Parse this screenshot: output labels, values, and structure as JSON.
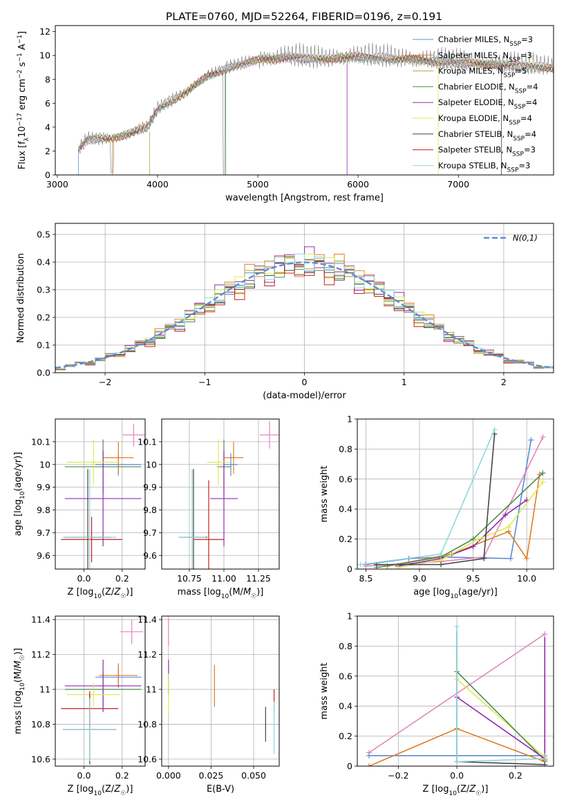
{
  "title": "PLATE=0760, MJD=52264, FIBERID=0196, z=0.191",
  "colors": {
    "series": [
      "#5b8bd9",
      "#e07b1f",
      "#b8a23a",
      "#4f8a4f",
      "#8f2bb0",
      "#d8ec52",
      "#444444",
      "#c41e1e",
      "#8fd6da"
    ],
    "pink": "#e584b8",
    "observed": "#7a7a7a",
    "normal_curve": "#5b8bd9",
    "grid": "#b0b0b0"
  },
  "chart_data": [
    {
      "id": "spectrum",
      "type": "line",
      "xlabel": "wavelength [Angstrom, rest frame]",
      "ylabel": "Flux [f_λ10^-17 erg cm^-2 s^-1 A^-1]",
      "xlim": [
        2980,
        7950
      ],
      "ylim": [
        0,
        12.5
      ],
      "xticks": [
        3000,
        4000,
        5000,
        6000,
        7000
      ],
      "yticks": [
        0,
        2,
        4,
        6,
        8,
        10,
        12
      ],
      "grid": false,
      "legend": "right",
      "series_names": [
        "Chabrier MILES, N_SSP=3",
        "Salpeter MILES, N_SSP=3",
        "Kroupa MILES, N_SSP=5",
        "Chabrier ELODIE, N_SSP=4",
        "Salpeter ELODIE, N_SSP=4",
        "Kroupa ELODIE, N_SSP=4",
        "Chabrier STELIB, N_SSP=4",
        "Salpeter STELIB, N_SSP=3",
        "Kroupa STELIB, N_SSP=3"
      ],
      "x_range": [
        3210,
        7950
      ],
      "continuum_x": [
        3210,
        3300,
        3500,
        3700,
        3900,
        4000,
        4300,
        4500,
        4800,
        5000,
        5300,
        5600,
        6000,
        6500,
        7000,
        7500,
        7950
      ],
      "continuum_y": [
        2.1,
        3.0,
        3.0,
        3.4,
        4.0,
        5.5,
        7.0,
        8.3,
        9.2,
        9.6,
        9.9,
        9.7,
        9.9,
        9.7,
        9.4,
        9.2,
        9.0
      ]
    },
    {
      "id": "residuals",
      "type": "bar",
      "xlabel": "(data-model)/error",
      "ylabel": "Normed distribution",
      "xlim": [
        -2.5,
        2.5
      ],
      "ylim": [
        0,
        0.54
      ],
      "xticks": [
        -2,
        -1,
        0,
        1,
        2
      ],
      "yticks": [
        0.0,
        0.1,
        0.2,
        0.3,
        0.4,
        0.5
      ],
      "grid": true,
      "legend": "top-right",
      "curve_name": "N(0,1)",
      "bin_width": 0.1,
      "bin_start": -2.5,
      "histogram_peak": [
        0.39,
        0.39,
        0.4,
        0.38,
        0.39,
        0.4,
        0.38,
        0.37,
        0.4
      ],
      "offsets": [
        [
          0.0,
          0.05,
          -0.02,
          0.03,
          -0.03,
          0.04,
          0.0,
          -0.04,
          0.02
        ],
        [
          0.06,
          -0.05,
          0.11,
          -0.02,
          0.04,
          -0.03,
          0.05,
          -0.06,
          0.03
        ],
        [
          -0.04,
          0.02,
          -0.06,
          0.05,
          -0.01,
          0.06,
          -0.05,
          0.03,
          -0.02
        ]
      ]
    },
    {
      "id": "age-vs-z",
      "type": "scatter",
      "xlabel": "Z [log10(Z/Z☉)]",
      "ylabel": "age [log10(age/yr)]",
      "xlim": [
        -0.15,
        0.32
      ],
      "ylim": [
        9.54,
        10.2
      ],
      "xticks": [
        0.0,
        0.2
      ],
      "xtick_labels": [
        "0.0",
        "0.2"
      ],
      "yticks": [
        9.6,
        9.7,
        9.8,
        9.9,
        10.0,
        10.1
      ],
      "grid": true,
      "points": [
        {
          "x": 0.18,
          "y": 10.0,
          "xerr": 0.12,
          "yerr": 0.05,
          "c": 0
        },
        {
          "x": 0.18,
          "y": 10.03,
          "xerr": 0.08,
          "yerr": 0.07,
          "c": 1
        },
        {
          "x": 0.1,
          "y": 9.99,
          "xerr": 0.2,
          "yerr": 0.12,
          "c": 3
        },
        {
          "x": 0.1,
          "y": 9.85,
          "xerr": 0.2,
          "yerr": 0.21,
          "c": 4
        },
        {
          "x": 0.05,
          "y": 10.01,
          "xerr": 0.14,
          "yerr": 0.1,
          "c": 5
        },
        {
          "x": 0.02,
          "y": 9.68,
          "xerr": 0.12,
          "yerr": 0.3,
          "c": 6
        },
        {
          "x": 0.04,
          "y": 9.67,
          "xerr": 0.16,
          "yerr": 0.1,
          "c": 7
        },
        {
          "x": 0.03,
          "y": 9.68,
          "xerr": 0.14,
          "yerr": 0.3,
          "c": 8
        },
        {
          "x": 0.26,
          "y": 10.13,
          "xerr": 0.06,
          "yerr": 0.05,
          "c": 9
        }
      ]
    },
    {
      "id": "age-vs-mass",
      "type": "scatter",
      "xlabel": "mass [log10(M/M☉)]",
      "xlim": [
        10.55,
        11.4
      ],
      "ylim": [
        9.54,
        10.2
      ],
      "xticks": [
        10.75,
        11.0,
        11.25
      ],
      "xtick_labels": [
        "10.75",
        "11.00",
        "11.25"
      ],
      "yticks": [
        9.6,
        9.7,
        9.8,
        9.9,
        10.0,
        10.1
      ],
      "grid": true,
      "points": [
        {
          "x": 11.05,
          "y": 10.0,
          "xerr": 0.05,
          "yerr": 0.05,
          "c": 0
        },
        {
          "x": 11.07,
          "y": 10.03,
          "xerr": 0.07,
          "yerr": 0.07,
          "c": 1
        },
        {
          "x": 11.0,
          "y": 9.99,
          "xerr": 0.05,
          "yerr": 0.12,
          "c": 3
        },
        {
          "x": 11.0,
          "y": 9.85,
          "xerr": 0.1,
          "yerr": 0.21,
          "c": 4
        },
        {
          "x": 10.96,
          "y": 10.01,
          "xerr": 0.08,
          "yerr": 0.1,
          "c": 5
        },
        {
          "x": 10.78,
          "y": 9.68,
          "xerr": 0.1,
          "yerr": 0.3,
          "c": 6
        },
        {
          "x": 10.89,
          "y": 9.67,
          "xerr": 0.11,
          "yerr": 0.26,
          "c": 7
        },
        {
          "x": 10.77,
          "y": 9.68,
          "xerr": 0.1,
          "yerr": 0.3,
          "c": 8
        },
        {
          "x": 11.33,
          "y": 10.13,
          "xerr": 0.07,
          "yerr": 0.06,
          "c": 9
        }
      ]
    },
    {
      "id": "weight-vs-age",
      "type": "line",
      "xlabel": "age [log10(age/yr)]",
      "ylabel": "mass weight",
      "xlim": [
        8.42,
        10.25
      ],
      "ylim": [
        0,
        1
      ],
      "xticks": [
        8.5,
        9.0,
        9.5,
        10.0
      ],
      "xtick_labels": [
        "8.5",
        "9.0",
        "9.5",
        "10.0"
      ],
      "yticks": [
        0.0,
        0.2,
        0.4,
        0.6,
        0.8,
        1.0
      ],
      "grid": true,
      "series": [
        {
          "c": 0,
          "x": [
            8.5,
            8.9,
            9.2,
            9.85,
            10.04
          ],
          "y": [
            0.03,
            0.07,
            0.08,
            0.07,
            0.86
          ]
        },
        {
          "c": 1,
          "x": [
            8.7,
            9.3,
            9.83,
            10.0,
            10.12
          ],
          "y": [
            0.02,
            0.1,
            0.25,
            0.07,
            0.63
          ]
        },
        {
          "c": 9,
          "x": [
            8.5,
            9.2,
            9.6,
            10.15
          ],
          "y": [
            0.02,
            0.05,
            0.08,
            0.88
          ]
        },
        {
          "c": 3,
          "x": [
            8.6,
            9.2,
            9.5,
            10.15
          ],
          "y": [
            0.01,
            0.08,
            0.2,
            0.64
          ]
        },
        {
          "c": 4,
          "x": [
            8.8,
            9.2,
            9.5,
            9.8,
            10.0
          ],
          "y": [
            0.02,
            0.07,
            0.15,
            0.36,
            0.46
          ]
        },
        {
          "c": 5,
          "x": [
            8.8,
            9.2,
            9.55,
            9.83,
            10.15
          ],
          "y": [
            0.01,
            0.06,
            0.2,
            0.28,
            0.58
          ]
        },
        {
          "c": 6,
          "x": [
            8.6,
            9.2,
            9.6,
            9.7
          ],
          "y": [
            0.03,
            0.03,
            0.07,
            0.9
          ]
        },
        {
          "c": 8,
          "x": [
            8.45,
            9.2,
            9.7
          ],
          "y": [
            0.03,
            0.1,
            0.93
          ]
        }
      ]
    },
    {
      "id": "mass-vs-z",
      "type": "scatter",
      "xlabel": "Z [log10(Z/Z☉)]",
      "ylabel": "mass [log10(M/M☉)]",
      "xlim": [
        -0.15,
        0.32
      ],
      "ylim": [
        10.56,
        11.42
      ],
      "xticks": [
        0.0,
        0.2
      ],
      "xtick_labels": [
        "0.0",
        "0.2"
      ],
      "yticks": [
        10.6,
        10.8,
        11.0,
        11.2,
        11.4
      ],
      "grid": true,
      "points": [
        {
          "x": 0.18,
          "y": 11.07,
          "xerr": 0.12,
          "yerr": 0.06,
          "c": 0
        },
        {
          "x": 0.18,
          "y": 11.08,
          "xerr": 0.1,
          "yerr": 0.07,
          "c": 1
        },
        {
          "x": 0.1,
          "y": 11.0,
          "xerr": 0.2,
          "yerr": 0.1,
          "c": 3
        },
        {
          "x": 0.1,
          "y": 11.02,
          "xerr": 0.2,
          "yerr": 0.15,
          "c": 4
        },
        {
          "x": 0.05,
          "y": 10.97,
          "xerr": 0.14,
          "yerr": 0.07,
          "c": 5
        },
        {
          "x": 0.03,
          "y": 10.77,
          "xerr": 0.14,
          "yerr": 0.2,
          "c": 6
        },
        {
          "x": 0.03,
          "y": 10.89,
          "xerr": 0.15,
          "yerr": 0.1,
          "c": 7
        },
        {
          "x": 0.03,
          "y": 10.77,
          "xerr": 0.14,
          "yerr": 0.18,
          "c": 8
        },
        {
          "x": 0.25,
          "y": 11.33,
          "xerr": 0.06,
          "yerr": 0.07,
          "c": 9
        }
      ]
    },
    {
      "id": "mass-vs-ebv",
      "type": "scatter",
      "xlabel": "E(B-V)",
      "xlim": [
        -0.004,
        0.065
      ],
      "ylim": [
        10.56,
        11.42
      ],
      "xticks": [
        0.0,
        0.025,
        0.05
      ],
      "xtick_labels": [
        "0.000",
        "0.025",
        "0.050"
      ],
      "yticks": [
        10.6,
        10.8,
        11.0,
        11.2,
        11.4
      ],
      "grid": true,
      "points": [
        {
          "x": 0.0,
          "y": 11.33,
          "xerr": 0,
          "yerr": 0.08,
          "c": 9
        },
        {
          "x": 0.0,
          "y": 11.07,
          "xerr": 0,
          "yerr": 0.1,
          "c": 4
        },
        {
          "x": 0.0,
          "y": 10.97,
          "xerr": 0,
          "yerr": 0.12,
          "c": 5
        },
        {
          "x": 0.027,
          "y": 11.02,
          "xerr": 0,
          "yerr": 0.12,
          "c": 1
        },
        {
          "x": 0.057,
          "y": 10.8,
          "xerr": 0,
          "yerr": 0.1,
          "c": 6
        },
        {
          "x": 0.062,
          "y": 10.93,
          "xerr": 0,
          "yerr": 0.07,
          "c": 7
        },
        {
          "x": 0.062,
          "y": 10.78,
          "xerr": 0,
          "yerr": 0.15,
          "c": 8
        }
      ]
    },
    {
      "id": "weight-vs-z",
      "type": "line",
      "xlabel": "Z [log10(Z/Z☉)]",
      "ylabel": "mass weight",
      "xlim": [
        -0.34,
        0.33
      ],
      "ylim": [
        0,
        1
      ],
      "xticks": [
        -0.2,
        0.0,
        0.2
      ],
      "xtick_labels": [
        "−0.2",
        "0.0",
        "0.2"
      ],
      "yticks": [
        0.0,
        0.2,
        0.4,
        0.6,
        0.8,
        1.0
      ],
      "grid": true,
      "series": [
        {
          "c": 9,
          "x": [
            -0.3,
            0.3
          ],
          "y": [
            0.09,
            0.88
          ]
        },
        {
          "c": 0,
          "x": [
            -0.3,
            0.3
          ],
          "y": [
            0.07,
            0.07
          ]
        },
        {
          "c": 1,
          "x": [
            -0.3,
            0.0,
            0.3
          ],
          "y": [
            0.0,
            0.25,
            0.03
          ]
        },
        {
          "c": 5,
          "x": [
            0.0,
            0.3
          ],
          "y": [
            0.58,
            0.06
          ]
        },
        {
          "c": 3,
          "x": [
            0.0,
            0.3
          ],
          "y": [
            0.63,
            0.04
          ]
        },
        {
          "c": 4,
          "x": [
            0.0,
            0.3
          ],
          "y": [
            0.46,
            0.05
          ]
        },
        {
          "c": 6,
          "x": [
            0.0,
            0.3
          ],
          "y": [
            0.03,
            0.01
          ]
        },
        {
          "c": 8,
          "x": [
            0.0,
            0.0,
            0.3
          ],
          "y": [
            0.93,
            0.03,
            0.05
          ]
        }
      ],
      "vertical_segments": [
        {
          "c": 1,
          "x": 0.3,
          "y0": 0.03,
          "y1": 0.63
        },
        {
          "c": 4,
          "x": 0.3,
          "y0": 0.05,
          "y1": 0.86
        },
        {
          "c": 6,
          "x": 0.0,
          "y0": 0.03,
          "y1": 0.9
        }
      ]
    }
  ]
}
